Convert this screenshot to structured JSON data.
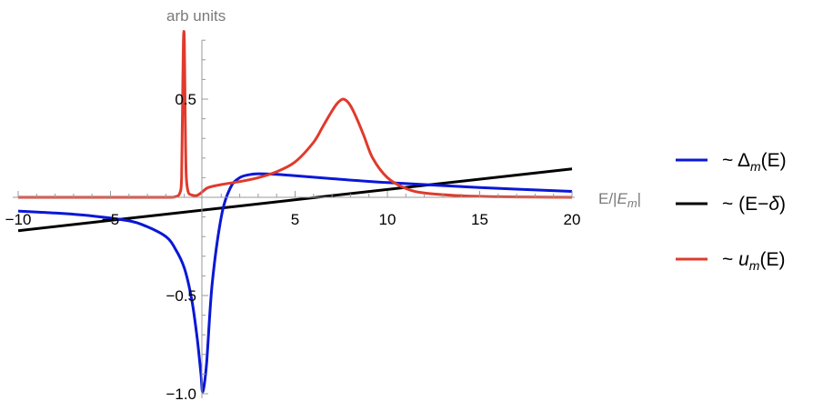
{
  "chart_data": {
    "type": "line",
    "title": "",
    "xlabel": "E/|E_m|",
    "xlabel_parts": {
      "prefix": "E/|",
      "ital": "E",
      "sub": "m",
      "suffix": "|"
    },
    "ylabel": "arb units",
    "xlim": [
      -10,
      20
    ],
    "ylim": [
      -1.0,
      0.8
    ],
    "x_ticks": [
      -10,
      -5,
      5,
      10,
      15,
      20
    ],
    "x_tick_labels": [
      "−10",
      "−5",
      "5",
      "10",
      "15",
      "20"
    ],
    "y_ticks": [
      -1.0,
      -0.5,
      0.5
    ],
    "y_tick_labels": [
      "−1.0",
      "−0.5",
      "0.5"
    ],
    "grid": false,
    "legend_position": "right",
    "series": [
      {
        "name": "~ Δm(E)",
        "legend_prefix": "~ Δ",
        "legend_sub": "m",
        "legend_suffix": "(E)",
        "legend_ital": "",
        "color": "#0a17d6",
        "x": [
          -10,
          -8,
          -6,
          -4,
          -3,
          -2,
          -1.5,
          -1,
          -0.6,
          -0.3,
          -0.1,
          0.0,
          0.2,
          0.5,
          1.0,
          1.5,
          2.0,
          2.5,
          3.0,
          4.0,
          5.0,
          7.0,
          10.0,
          15.0,
          20.0
        ],
        "y": [
          -0.07,
          -0.08,
          -0.095,
          -0.12,
          -0.15,
          -0.2,
          -0.26,
          -0.36,
          -0.52,
          -0.72,
          -0.9,
          -0.99,
          -0.85,
          -0.45,
          -0.1,
          0.05,
          0.1,
          0.115,
          0.12,
          0.117,
          0.11,
          0.095,
          0.075,
          0.05,
          0.03
        ]
      },
      {
        "name": "~ (E−δ)",
        "legend_prefix": "~ (E−",
        "legend_sub": "",
        "legend_suffix": ")",
        "legend_ital": "δ",
        "color": "#000000",
        "x": [
          -10,
          20
        ],
        "y": [
          -0.17,
          0.145
        ]
      },
      {
        "name": "~ um(E)",
        "legend_prefix": "~ ",
        "legend_sub": "m",
        "legend_suffix": "(E)",
        "legend_ital": "u",
        "color": "#e03a2c",
        "x": [
          -10,
          -5,
          -2,
          -1.5,
          -1.25,
          -1.15,
          -1.1,
          -1.05,
          -1.0,
          -0.95,
          -0.9,
          -0.8,
          -0.6,
          -0.3,
          0.0,
          0.3,
          1.0,
          2.0,
          3.0,
          4.0,
          5.0,
          6.0,
          6.5,
          7.0,
          7.3,
          7.6,
          7.9,
          8.2,
          8.7,
          9.2,
          10.0,
          11.0,
          12.0,
          14.0,
          16.0,
          18.0,
          20.0
        ],
        "y": [
          0.0,
          0.0,
          0.0,
          0.003,
          0.02,
          0.1,
          0.45,
          0.8,
          0.8,
          0.4,
          0.12,
          0.03,
          0.012,
          0.01,
          0.03,
          0.05,
          0.065,
          0.08,
          0.1,
          0.13,
          0.18,
          0.28,
          0.36,
          0.44,
          0.48,
          0.5,
          0.48,
          0.43,
          0.32,
          0.2,
          0.1,
          0.045,
          0.022,
          0.008,
          0.003,
          0.001,
          0.0
        ]
      }
    ]
  }
}
